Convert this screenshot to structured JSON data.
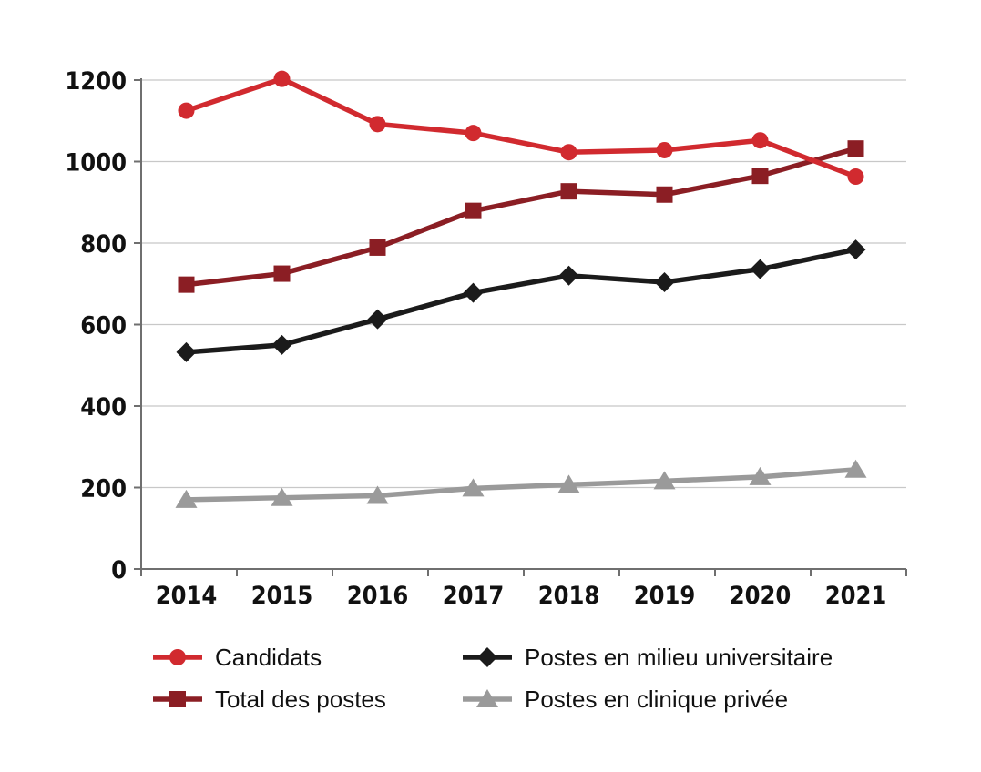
{
  "chart_data": {
    "type": "line",
    "x": [
      "2014",
      "2015",
      "2016",
      "2017",
      "2018",
      "2019",
      "2020",
      "2021"
    ],
    "ylim": [
      0,
      1200
    ],
    "yticks": [
      0,
      200,
      400,
      600,
      800,
      1000,
      1200
    ],
    "grid": true,
    "legend_position": "bottom",
    "series": [
      {
        "name": "Candidats",
        "color": "#d12a2f",
        "marker": "circle",
        "values": [
          1125,
          1203,
          1092,
          1070,
          1023,
          1028,
          1052,
          963
        ]
      },
      {
        "name": "Total des postes",
        "color": "#8b1e24",
        "marker": "square",
        "values": [
          698,
          725,
          789,
          879,
          927,
          919,
          965,
          1032
        ]
      },
      {
        "name": "Postes en milieu universitaire",
        "color": "#1b1b1b",
        "marker": "diamond",
        "values": [
          532,
          550,
          613,
          678,
          720,
          704,
          736,
          784
        ]
      },
      {
        "name": "Postes en clinique privée",
        "color": "#9a9a9a",
        "marker": "triangle",
        "values": [
          170,
          175,
          180,
          198,
          207,
          216,
          226,
          244
        ]
      }
    ]
  }
}
